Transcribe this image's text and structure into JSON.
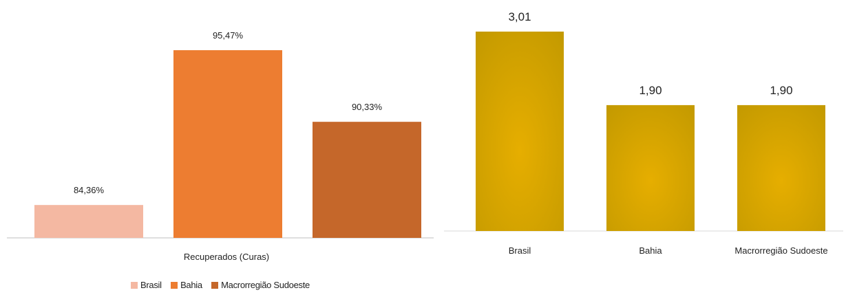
{
  "chart_data": [
    {
      "type": "bar",
      "xlabel": "Recuperados (Curas)",
      "ylabel": "",
      "ylim": [
        82,
        97
      ],
      "grid": false,
      "legend_position": "bottom",
      "categories": [
        "Recuperados (Curas)"
      ],
      "series": [
        {
          "name": "Brasil",
          "values": [
            84.36
          ],
          "label": "84,36%",
          "color": "#f4b8a2"
        },
        {
          "name": "Bahia",
          "values": [
            95.47
          ],
          "label": "95,47%",
          "color": "#ed7d31"
        },
        {
          "name": "Macrorregião Sudoeste",
          "values": [
            90.33
          ],
          "label": "90,33%",
          "color": "#c5672a"
        }
      ]
    },
    {
      "type": "bar",
      "ylim": [
        0,
        3.3
      ],
      "grid": false,
      "categories": [
        "Brasil",
        "Bahia",
        "Macrorregião Sudoeste"
      ],
      "values": [
        3.01,
        1.9,
        1.9
      ],
      "labels": [
        "3,01",
        "1,90",
        "1,90"
      ],
      "color": "#c49a00",
      "highlight_color": "#e6ae00"
    }
  ]
}
